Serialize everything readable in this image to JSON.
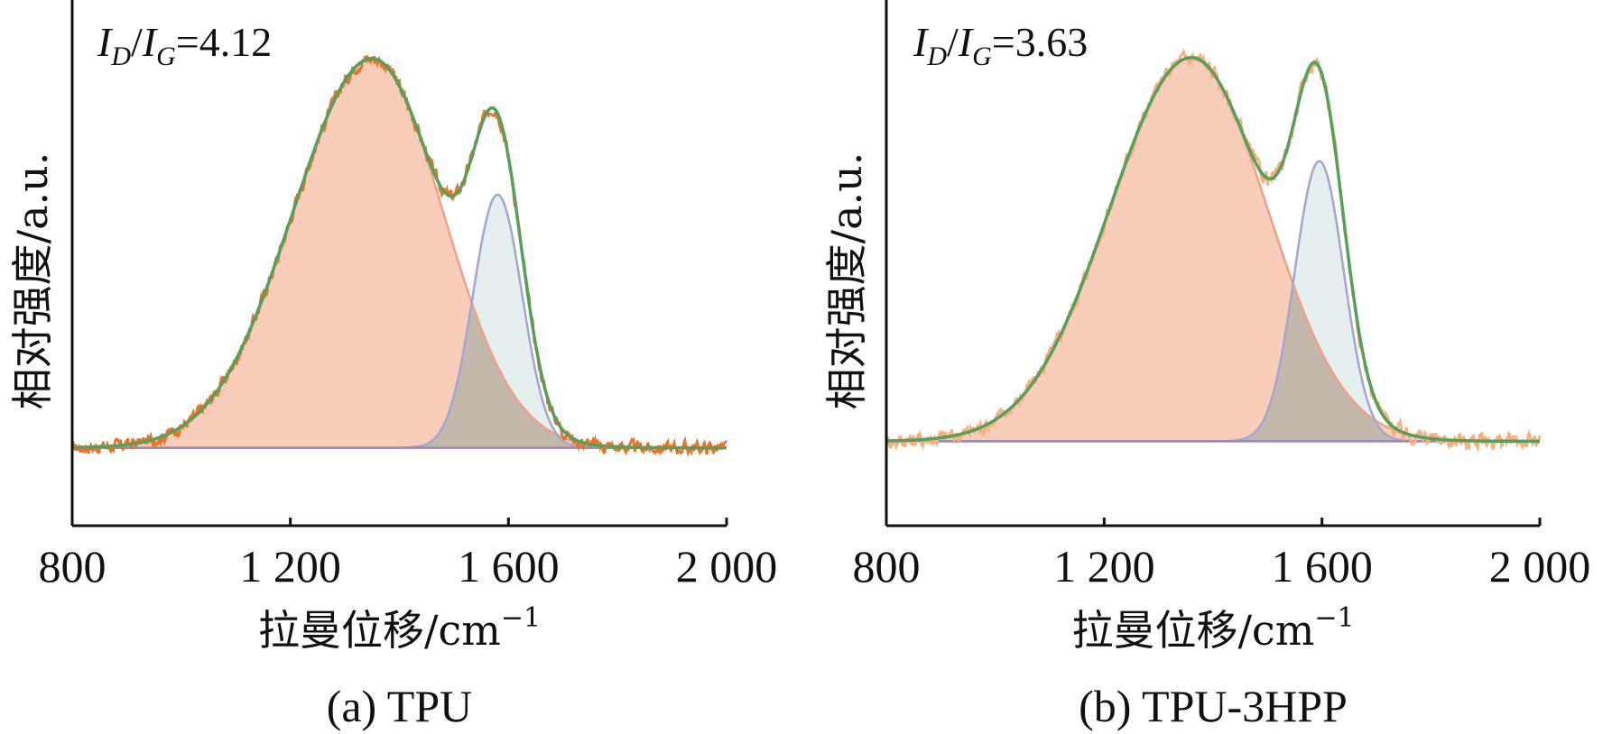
{
  "chart_data": [
    {
      "type": "line",
      "caption": "(a) TPU",
      "ratio": {
        "prefix_1": "I",
        "sub_1": "D",
        "sep": "/",
        "prefix_2": "I",
        "sub_2": "G",
        "value": "=4.12"
      },
      "xlabel": "拉曼位移/cm",
      "xlabel_sup": "−1",
      "ylabel": "相对强度/a.u.",
      "xlim": [
        800,
        2000
      ],
      "xticks": [
        800,
        1200,
        1600,
        2000
      ],
      "xtick_labels": [
        "800",
        "1 200",
        "1 600",
        "2 000"
      ],
      "ylim": [
        -0.2,
        1.15
      ],
      "baseline": 0,
      "grid": false,
      "colors": {
        "raw": "#e8742a",
        "d_band": "#f0a08a",
        "d_fill": "#f6c1a8",
        "g_band": "#a3a6d0",
        "g_fill": "#dde9ea",
        "fit": "#5a9e5e"
      },
      "d_band": {
        "center": 1350,
        "sigma_left": 145,
        "sigma_right": 130,
        "amplitude": 1.0
      },
      "g_band": {
        "center": 1580,
        "sigma_left": 45,
        "sigma_right": 45,
        "amplitude": 0.65
      },
      "noise": 0.013
    },
    {
      "type": "line",
      "caption": "(b) TPU-3HPP",
      "ratio": {
        "prefix_1": "I",
        "sub_1": "D",
        "sep": "/",
        "prefix_2": "I",
        "sub_2": "G",
        "value": "=3.63"
      },
      "xlabel": "拉曼位移/cm",
      "xlabel_sup": "−1",
      "ylabel": "相对强度/a.u.",
      "xlim": [
        800,
        2000
      ],
      "xticks": [
        800,
        1200,
        1600,
        2000
      ],
      "xtick_labels": [
        "800",
        "1 200",
        "1 600",
        "2 000"
      ],
      "ylim": [
        -0.22,
        1.15
      ],
      "baseline": 0,
      "grid": false,
      "colors": {
        "raw": "#f4b07e",
        "d_band": "#f0a08a",
        "d_fill": "#f6c1a8",
        "g_band": "#a3a6d0",
        "g_fill": "#dde9ea",
        "fit": "#5a9e5e"
      },
      "d_band": {
        "center": 1360,
        "sigma_left": 150,
        "sigma_right": 140,
        "amplitude": 1.0
      },
      "g_band": {
        "center": 1595,
        "sigma_left": 45,
        "sigma_right": 45,
        "amplitude": 0.73
      },
      "noise": 0.016
    }
  ]
}
